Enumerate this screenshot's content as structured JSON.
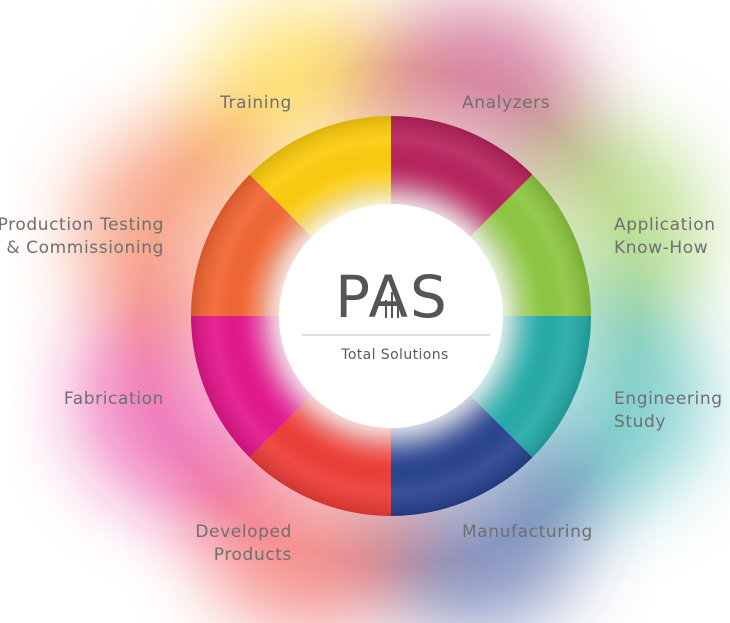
{
  "logo": {
    "text": "PAS",
    "tagline": "Total Solutions"
  },
  "segments": [
    {
      "label_lines": [
        "Training"
      ],
      "color": "#fccb0a"
    },
    {
      "label_lines": [
        "Analyzers"
      ],
      "color": "#b7215b"
    },
    {
      "label_lines": [
        "Application",
        "Know-How"
      ],
      "color": "#8cc63f"
    },
    {
      "label_lines": [
        "Engineering",
        "Study"
      ],
      "color": "#23aaa8"
    },
    {
      "label_lines": [
        "Manufacturing"
      ],
      "color": "#27418f"
    },
    {
      "label_lines": [
        "Developed",
        "Products"
      ],
      "color": "#ee3b35"
    },
    {
      "label_lines": [
        "Fabrication"
      ],
      "color": "#e3148a"
    },
    {
      "label_lines": [
        "Production Testing",
        "& Commissioning"
      ],
      "color": "#f26430"
    }
  ],
  "colors": {
    "label_text": "#6f6f6f",
    "logo_text": "#555555"
  }
}
